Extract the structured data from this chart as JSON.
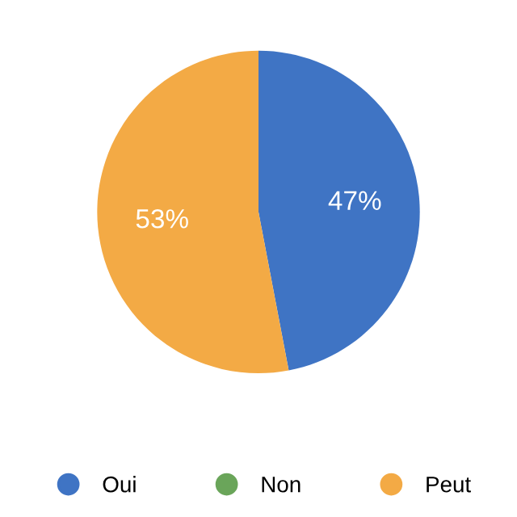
{
  "chart_data": {
    "type": "pie",
    "categories": [
      "Oui",
      "Non",
      "Peut"
    ],
    "values": [
      47,
      0,
      53
    ],
    "colors": [
      "#3f74c4",
      "#6aa55a",
      "#f3aa45"
    ],
    "value_labels": [
      "47%",
      null,
      "53%"
    ],
    "legend": "bottom"
  }
}
